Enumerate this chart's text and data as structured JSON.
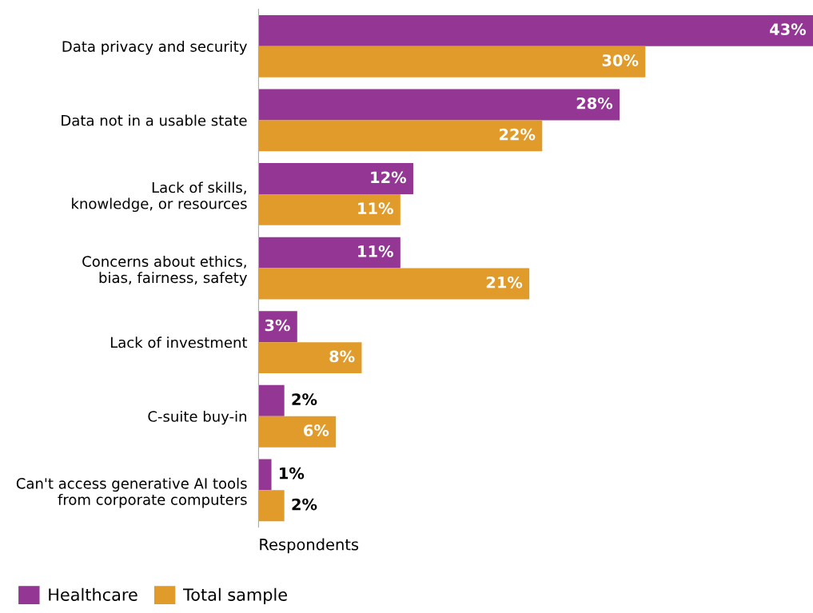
{
  "chart_data": {
    "type": "bar",
    "orientation": "horizontal",
    "xlabel": "Respondents",
    "categories": [
      "Data privacy and security",
      "Data not in a usable state",
      "Lack of skills,\nknowledge, or resources",
      "Concerns about ethics,\nbias, fairness, safety",
      "Lack of investment",
      "C-suite buy-in",
      "Can't access generative AI tools\nfrom corporate computers"
    ],
    "series": [
      {
        "name": "Healthcare",
        "color": "#933694",
        "values": [
          43,
          28,
          12,
          11,
          3,
          2,
          1
        ],
        "value_labels": [
          "43%",
          "28%",
          "12%",
          "11%",
          "3%",
          "2%",
          "1%"
        ]
      },
      {
        "name": "Total sample",
        "color": "#e19b2a",
        "values": [
          30,
          22,
          11,
          21,
          8,
          6,
          2
        ],
        "value_labels": [
          "30%",
          "22%",
          "11%",
          "21%",
          "8%",
          "6%",
          "2%"
        ]
      }
    ],
    "tick_labels": "y",
    "legend": "bottom left"
  }
}
